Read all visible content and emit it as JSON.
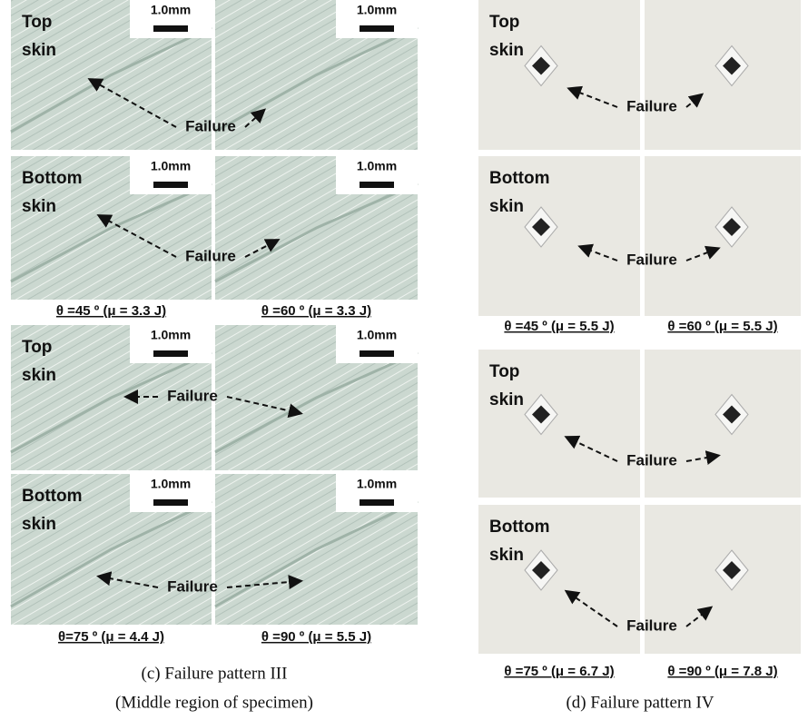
{
  "panels": [
    {
      "groups": [
        {
          "rows": [
            {
              "label": [
                "Top",
                "skin"
              ],
              "failure": "Failure",
              "scale_bars": [
                "1.0mm",
                "1.0mm"
              ]
            },
            {
              "label": [
                "Bottom",
                "skin"
              ],
              "failure": "Failure",
              "scale_bars": [
                "1.0mm",
                "1.0mm"
              ]
            }
          ],
          "captions": [
            "θ =45 º (μ = 3.3 J)",
            "θ =60 º (μ = 3.3 J)"
          ]
        },
        {
          "rows": [
            {
              "label": [
                "Top",
                "skin"
              ],
              "failure": "Failure",
              "scale_bars": [
                "1.0mm",
                "1.0mm"
              ]
            },
            {
              "label": [
                "Bottom",
                "skin"
              ],
              "failure": "Failure",
              "scale_bars": [
                "1.0mm",
                "1.0mm"
              ]
            }
          ],
          "captions": [
            "θ=75 º (μ = 4.4 J)",
            "θ =90 º (μ = 5.5 J)"
          ]
        }
      ],
      "caption": [
        "(c) Failure pattern III",
        "(Middle region of specimen)"
      ]
    },
    {
      "groups": [
        {
          "rows": [
            {
              "label": [
                "Top",
                "skin"
              ],
              "failure": "Failure"
            },
            {
              "label": [
                "Bottom",
                "skin"
              ],
              "failure": "Failure"
            }
          ],
          "captions": [
            "θ =45 º (μ = 5.5 J)",
            "θ =60 º (μ = 5.5 J)"
          ]
        },
        {
          "rows": [
            {
              "label": [
                "Top",
                "skin"
              ],
              "failure": "Failure"
            },
            {
              "label": [
                "Bottom",
                "skin"
              ],
              "failure": "Failure"
            }
          ],
          "captions": [
            "θ =75 º (μ = 6.7 J)",
            "θ =90 º (μ = 7.8 J)"
          ]
        }
      ],
      "caption": [
        "(d) Failure pattern IV"
      ]
    }
  ]
}
